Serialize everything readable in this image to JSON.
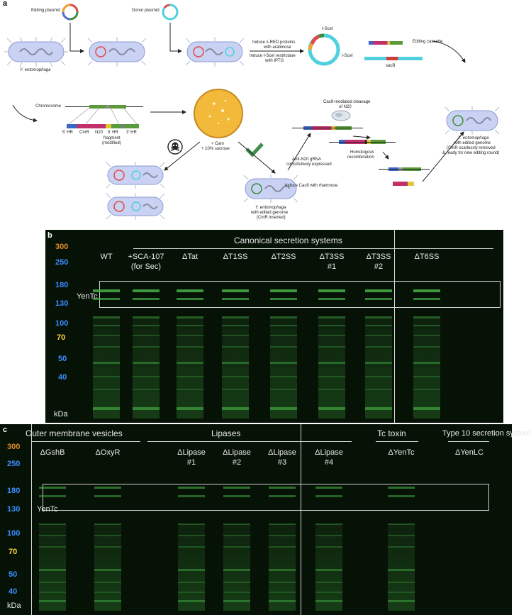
{
  "panel_a": {
    "letter": "a",
    "editing_plasmid": "Editing plasmid",
    "donor_plasmid": "Donor plasmid",
    "organism": "Y. entomophaga",
    "induce_red_1": "Induce λ-RED proteins",
    "induce_red_2": "with arabinose",
    "induce_scei_1": "Induce I-SceI restrictase",
    "induce_scei_2": "with IPTG",
    "scei_top": "I-SceI",
    "scei_right": "I-SceI",
    "editing_cassette": "Editing cassette",
    "sacb": "sacB",
    "chromosome": "Chromosome",
    "hr5": "5' HR",
    "cmr": "CmR",
    "n20": "N20",
    "hr5b": "5' HR",
    "hr3": "3' HR",
    "fragment_1": "fragment",
    "fragment_2": "(modified)",
    "cam": "+ Cam",
    "sucrose": "+ 10% sucrose",
    "cas9_cleave_1": "Cas9-mediated cleavage",
    "cas9_cleave_2": "of N20",
    "anti_1": "Anti-N20 gRNA",
    "anti_2": "constitutively expressed",
    "induce_cas9": "Induce Cas9 with rhamnose",
    "homologous_1": "Homologous",
    "homologous_2": "recombination",
    "edited_org": "Y. entomophaga",
    "edited_1": "with edited genome",
    "edited_2": "(CmR inserted)",
    "final_org": "Y. entomophaga",
    "final_1": "with edited genome",
    "final_2": "(CmR scarlessly removed",
    "final_3": "& ready for new editing round)"
  },
  "panel_b": {
    "letter": "b",
    "header": "Canonical secretion systems",
    "markers": [
      "300",
      "250",
      "180",
      "130",
      "100",
      "70",
      "50",
      "40"
    ],
    "unit": "kDa",
    "yentc": "YenTc",
    "lanes": [
      {
        "l1": "WT",
        "l2": ""
      },
      {
        "l1": "+SCA-107",
        "l2": "(for Sec)"
      },
      {
        "l1": "ΔTat",
        "l2": ""
      },
      {
        "l1": "ΔT1SS",
        "l2": ""
      },
      {
        "l1": "ΔT2SS",
        "l2": ""
      },
      {
        "l1": "ΔT3SS",
        "l2": "#1"
      },
      {
        "l1": "ΔT3SS",
        "l2": "#2"
      },
      {
        "l1": "ΔT6SS",
        "l2": ""
      }
    ]
  },
  "panel_c": {
    "letter": "c",
    "header_omv": "Outer membrane vesicles",
    "header_lipases": "Lipases",
    "header_tc": "Tc toxin",
    "header_t10": "Type 10 secretion system",
    "markers": [
      "300",
      "250",
      "180",
      "130",
      "100",
      "70",
      "50",
      "40"
    ],
    "unit": "kDa",
    "yentc": "YenTc",
    "lanes": [
      {
        "l1": "ΔGshB",
        "l2": ""
      },
      {
        "l1": "ΔOxyR",
        "l2": ""
      },
      {
        "l1": "ΔLipase",
        "l2": "#1"
      },
      {
        "l1": "ΔLipase",
        "l2": "#2"
      },
      {
        "l1": "ΔLipase",
        "l2": "#3"
      },
      {
        "l1": "ΔLipase",
        "l2": "#4"
      },
      {
        "l1": "ΔYenTc",
        "l2": ""
      },
      {
        "l1": "ΔYenLC",
        "l2": ""
      }
    ]
  },
  "colors": {
    "gel_bg": "#071207",
    "band": "#3fae3f",
    "marker_300": "#e08a2a",
    "marker_blue": "#3a8cff",
    "marker_70": "#ffd23a",
    "petri": "#f2b93a",
    "check": "#3f8f50"
  }
}
